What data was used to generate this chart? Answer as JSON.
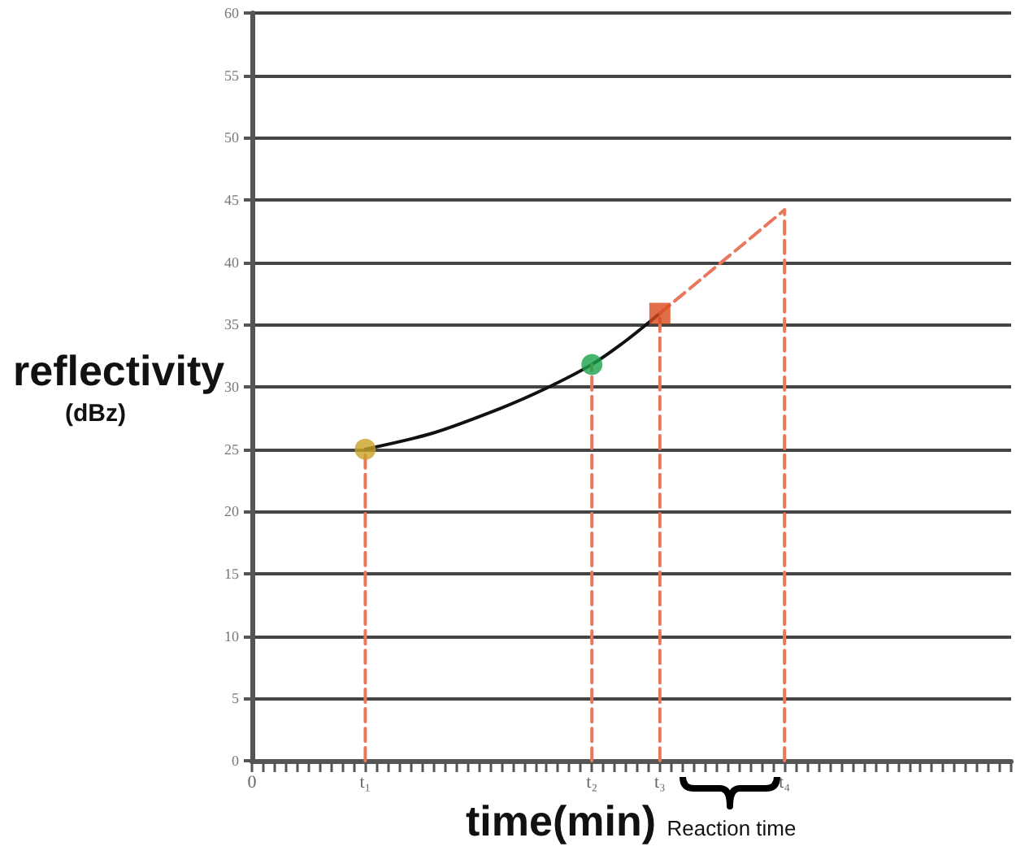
{
  "chart_data": {
    "type": "line",
    "xlabel": "time(min)",
    "ylabel": "reflectivity\n(dBz)",
    "categories": [
      "0",
      null,
      null,
      null,
      null,
      null,
      null,
      null,
      null,
      null,
      "t₁",
      null,
      null,
      null,
      null,
      null,
      null,
      null,
      null,
      null,
      null,
      null,
      null,
      null,
      null,
      null,
      null,
      null,
      null,
      null,
      "t₂",
      null,
      null,
      null,
      null,
      null,
      "t₃",
      null,
      null,
      null,
      null,
      null,
      null,
      null,
      null,
      null,
      null,
      "t₄",
      null,
      null,
      null,
      null,
      null,
      null,
      null,
      null,
      null,
      null,
      null,
      null,
      null,
      null,
      null,
      null,
      null,
      null,
      null,
      null
    ],
    "ylim": [
      0,
      60
    ],
    "yticks": [
      0,
      5,
      10,
      15,
      20,
      25,
      30,
      35,
      40,
      45,
      50,
      55,
      60
    ],
    "grid": "y",
    "series": [
      {
        "color": "#111111",
        "values": [
          null,
          null,
          null,
          null,
          null,
          null,
          null,
          null,
          null,
          null,
          25,
          null,
          null,
          null,
          null,
          null,
          26.3,
          null,
          null,
          null,
          null,
          null,
          28.3,
          null,
          null,
          null,
          29.9,
          null,
          null,
          null,
          31.8,
          null,
          null,
          33.7,
          null,
          null,
          35.9,
          null,
          null,
          null,
          null,
          null,
          null,
          null,
          null,
          null,
          null,
          null,
          null,
          null,
          null,
          null,
          null,
          null,
          null,
          null,
          null,
          null,
          null,
          null,
          null,
          null,
          null,
          null,
          null,
          null,
          null,
          null
        ],
        "marker": "none",
        "line_style": "solid"
      },
      {
        "color": "#e8775c",
        "values": [
          null,
          null,
          null,
          null,
          null,
          null,
          null,
          null,
          null,
          null,
          null,
          null,
          null,
          null,
          null,
          null,
          null,
          null,
          null,
          null,
          null,
          null,
          null,
          null,
          null,
          null,
          null,
          null,
          null,
          null,
          null,
          null,
          null,
          null,
          null,
          null,
          35.9,
          null,
          null,
          null,
          null,
          null,
          null,
          null,
          null,
          null,
          null,
          44.2,
          null,
          null,
          null,
          null,
          null,
          null,
          null,
          null,
          null,
          null,
          null,
          null,
          null,
          null,
          null,
          null,
          null,
          null,
          null,
          null
        ],
        "marker": "none",
        "line_style": "dashed"
      },
      {
        "color": "#e8775c",
        "x": [
          "t₁",
          "t₁"
        ],
        "values": [
          0,
          25
        ],
        "marker": "none",
        "line_style": "dashed"
      },
      {
        "color": "#e8775c",
        "x": [
          "t₂",
          "t₂"
        ],
        "values": [
          0,
          31.8
        ],
        "marker": "none",
        "line_style": "dashed"
      },
      {
        "color": "#e8775c",
        "x": [
          "t₃",
          "t₃"
        ],
        "values": [
          0,
          35.9
        ],
        "marker": "none",
        "line_style": "dashed"
      },
      {
        "color": "#e8775c",
        "x": [
          "t₄",
          "t₄"
        ],
        "values": [
          0,
          44.2
        ],
        "marker": "none",
        "line_style": "dashed"
      },
      {
        "type": "scatter",
        "color": "#c9a227",
        "x": [
          "t₁"
        ],
        "values": [
          25
        ],
        "marker": "circle"
      },
      {
        "type": "scatter",
        "color": "#1aa34a",
        "x": [
          "t₂"
        ],
        "values": [
          31.8
        ],
        "marker": "circle"
      },
      {
        "type": "scatter",
        "color": "#d94a1e",
        "x": [
          "t₃"
        ],
        "values": [
          35.9
        ],
        "marker": "square"
      }
    ],
    "annotations": [
      "Reaction time"
    ]
  }
}
